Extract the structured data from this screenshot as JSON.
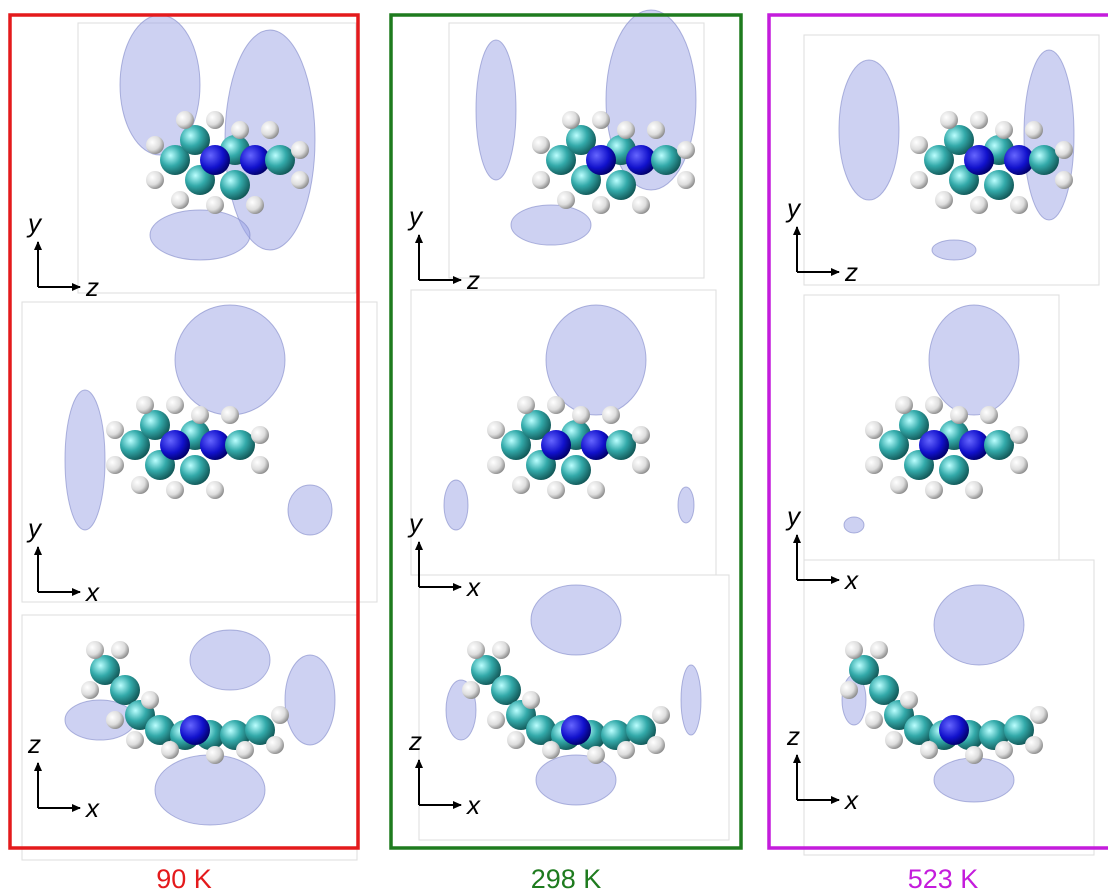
{
  "panels": [
    {
      "label": "90 K",
      "views": [
        {
          "vertical": "y",
          "horizontal": "z"
        },
        {
          "vertical": "y",
          "horizontal": "x"
        },
        {
          "vertical": "z",
          "horizontal": "x"
        }
      ]
    },
    {
      "label": "298 K",
      "views": [
        {
          "vertical": "y",
          "horizontal": "z"
        },
        {
          "vertical": "y",
          "horizontal": "x"
        },
        {
          "vertical": "z",
          "horizontal": "x"
        }
      ]
    },
    {
      "label": "523 K",
      "views": [
        {
          "vertical": "y",
          "horizontal": "z"
        },
        {
          "vertical": "y",
          "horizontal": "x"
        },
        {
          "vertical": "z",
          "horizontal": "x"
        }
      ]
    }
  ]
}
